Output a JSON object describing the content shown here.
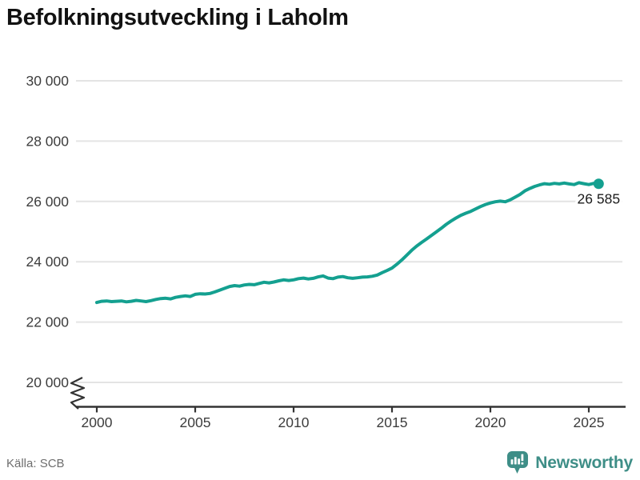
{
  "title": "Befolkningsutveckling i Laholm",
  "source_label": "Källa: SCB",
  "branding": {
    "name": "Newsworthy",
    "icon": "newsworthy-bubble-barchart-icon",
    "color": "#3e8e87"
  },
  "colors": {
    "line": "#14a090",
    "grid": "#e4e4e4",
    "axis": "#333333",
    "tick_text": "#3d3d3d",
    "end_label_text": "#1b1b1b"
  },
  "chart_data": {
    "type": "line",
    "title": "Befolkningsutveckling i Laholm",
    "xlabel": "",
    "ylabel": "",
    "grid": "horizontal-only",
    "legend": "none",
    "x_range": [
      2000,
      2025.5
    ],
    "ylim": [
      20000,
      30000
    ],
    "y_axis_break": true,
    "yticks": [
      {
        "value": 20000,
        "label": "20 000"
      },
      {
        "value": 22000,
        "label": "22 000"
      },
      {
        "value": 24000,
        "label": "24 000"
      },
      {
        "value": 26000,
        "label": "26 000"
      },
      {
        "value": 28000,
        "label": "28 000"
      },
      {
        "value": 30000,
        "label": "30 000"
      }
    ],
    "xticks": [
      {
        "value": 2000,
        "label": "2000"
      },
      {
        "value": 2005,
        "label": "2005"
      },
      {
        "value": 2010,
        "label": "2010"
      },
      {
        "value": 2015,
        "label": "2015"
      },
      {
        "value": 2020,
        "label": "2020"
      },
      {
        "value": 2025,
        "label": "2025"
      }
    ],
    "series_name": "Befolkning",
    "last_value": 26585,
    "last_point_label": "26 585",
    "points": [
      [
        2000,
        22650
      ],
      [
        2000.25,
        22690
      ],
      [
        2000.5,
        22700
      ],
      [
        2000.75,
        22680
      ],
      [
        2001,
        22690
      ],
      [
        2001.25,
        22700
      ],
      [
        2001.5,
        22670
      ],
      [
        2001.75,
        22690
      ],
      [
        2002,
        22720
      ],
      [
        2002.25,
        22700
      ],
      [
        2002.5,
        22680
      ],
      [
        2002.75,
        22710
      ],
      [
        2003,
        22750
      ],
      [
        2003.25,
        22780
      ],
      [
        2003.5,
        22790
      ],
      [
        2003.75,
        22770
      ],
      [
        2004,
        22820
      ],
      [
        2004.25,
        22850
      ],
      [
        2004.5,
        22870
      ],
      [
        2004.75,
        22850
      ],
      [
        2005,
        22920
      ],
      [
        2005.25,
        22940
      ],
      [
        2005.5,
        22930
      ],
      [
        2005.75,
        22950
      ],
      [
        2006,
        23000
      ],
      [
        2006.25,
        23060
      ],
      [
        2006.5,
        23120
      ],
      [
        2006.75,
        23180
      ],
      [
        2007,
        23210
      ],
      [
        2007.25,
        23190
      ],
      [
        2007.5,
        23230
      ],
      [
        2007.75,
        23250
      ],
      [
        2008,
        23240
      ],
      [
        2008.25,
        23280
      ],
      [
        2008.5,
        23320
      ],
      [
        2008.75,
        23300
      ],
      [
        2009,
        23330
      ],
      [
        2009.25,
        23370
      ],
      [
        2009.5,
        23400
      ],
      [
        2009.75,
        23380
      ],
      [
        2010,
        23400
      ],
      [
        2010.25,
        23440
      ],
      [
        2010.5,
        23460
      ],
      [
        2010.75,
        23430
      ],
      [
        2011,
        23450
      ],
      [
        2011.25,
        23500
      ],
      [
        2011.5,
        23530
      ],
      [
        2011.75,
        23460
      ],
      [
        2012,
        23440
      ],
      [
        2012.25,
        23490
      ],
      [
        2012.5,
        23510
      ],
      [
        2012.75,
        23470
      ],
      [
        2013,
        23450
      ],
      [
        2013.25,
        23470
      ],
      [
        2013.5,
        23490
      ],
      [
        2013.75,
        23500
      ],
      [
        2014,
        23520
      ],
      [
        2014.25,
        23560
      ],
      [
        2014.5,
        23640
      ],
      [
        2014.75,
        23710
      ],
      [
        2015,
        23790
      ],
      [
        2015.25,
        23920
      ],
      [
        2015.5,
        24060
      ],
      [
        2015.75,
        24220
      ],
      [
        2016,
        24380
      ],
      [
        2016.25,
        24520
      ],
      [
        2016.5,
        24640
      ],
      [
        2016.75,
        24750
      ],
      [
        2017,
        24870
      ],
      [
        2017.25,
        24990
      ],
      [
        2017.5,
        25110
      ],
      [
        2017.75,
        25240
      ],
      [
        2018,
        25350
      ],
      [
        2018.25,
        25450
      ],
      [
        2018.5,
        25540
      ],
      [
        2018.75,
        25610
      ],
      [
        2019,
        25670
      ],
      [
        2019.25,
        25750
      ],
      [
        2019.5,
        25830
      ],
      [
        2019.75,
        25900
      ],
      [
        2020,
        25950
      ],
      [
        2020.25,
        25990
      ],
      [
        2020.5,
        26010
      ],
      [
        2020.75,
        25990
      ],
      [
        2021,
        26050
      ],
      [
        2021.25,
        26140
      ],
      [
        2021.5,
        26230
      ],
      [
        2021.75,
        26350
      ],
      [
        2022,
        26430
      ],
      [
        2022.25,
        26500
      ],
      [
        2022.5,
        26550
      ],
      [
        2022.75,
        26590
      ],
      [
        2023,
        26570
      ],
      [
        2023.25,
        26600
      ],
      [
        2023.5,
        26580
      ],
      [
        2023.75,
        26610
      ],
      [
        2024,
        26580
      ],
      [
        2024.25,
        26560
      ],
      [
        2024.5,
        26620
      ],
      [
        2024.75,
        26590
      ],
      [
        2025,
        26560
      ],
      [
        2025.25,
        26600
      ],
      [
        2025.5,
        26585
      ]
    ]
  }
}
